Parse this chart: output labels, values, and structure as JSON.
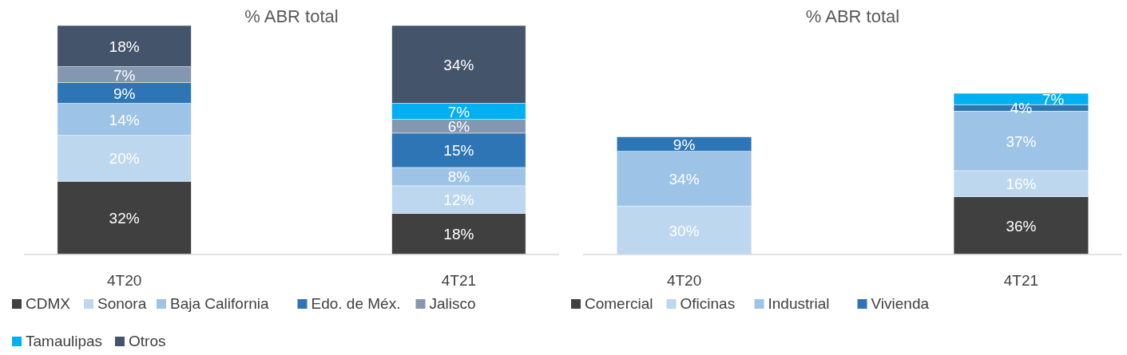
{
  "chart_data": [
    {
      "type": "bar",
      "title": "% ABR total",
      "categories": [
        "4T20",
        "4T21"
      ],
      "stacked": true,
      "legend": "bottom",
      "series": [
        {
          "name": "CDMX",
          "color": "#404040",
          "values": [
            32,
            18
          ],
          "value_labels": [
            "32%",
            "18%"
          ]
        },
        {
          "name": "Sonora",
          "color": "#bdd7ee",
          "values": [
            20,
            12
          ],
          "value_labels": [
            "20%",
            "12%"
          ]
        },
        {
          "name": "Baja California",
          "color": "#9dc3e6",
          "values": [
            14,
            8
          ],
          "value_labels": [
            "14%",
            "8%"
          ]
        },
        {
          "name": "Edo. de Méx.",
          "color": "#2e75b6",
          "values": [
            9,
            15
          ],
          "value_labels": [
            "9%",
            "15%"
          ]
        },
        {
          "name": "Jalisco",
          "color": "#8497b0",
          "values": [
            7,
            6
          ],
          "value_labels": [
            "7%",
            "6%"
          ]
        },
        {
          "name": "Tamaulipas",
          "color": "#00b0f0",
          "values": [
            null,
            7
          ],
          "value_labels": [
            null,
            "7%"
          ]
        },
        {
          "name": "Otros",
          "color": "#44546a",
          "values": [
            18,
            34
          ],
          "value_labels": [
            "18%",
            "34%"
          ]
        }
      ]
    },
    {
      "type": "bar",
      "title": "% ABR total",
      "categories": [
        "4T20",
        "4T21"
      ],
      "stacked": true,
      "legend": "bottom",
      "series": [
        {
          "name": "Comercial",
          "color": "#404040",
          "values": [
            null,
            36
          ],
          "value_labels": [
            null,
            "36%"
          ]
        },
        {
          "name": "Oficinas",
          "color": "#bdd7ee",
          "values": [
            30,
            16
          ],
          "value_labels": [
            "30%",
            "16%"
          ]
        },
        {
          "name": "Industrial",
          "color": "#9dc3e6",
          "values": [
            34,
            37
          ],
          "value_labels": [
            "34%",
            "37%"
          ]
        },
        {
          "name": "Vivienda",
          "color": "#2e75b6",
          "values": [
            9,
            4
          ],
          "value_labels": [
            "9%",
            "4%"
          ]
        },
        {
          "color": "#00b0f0",
          "values": [
            null,
            7
          ],
          "value_labels": [
            null,
            "7%"
          ]
        }
      ]
    }
  ]
}
